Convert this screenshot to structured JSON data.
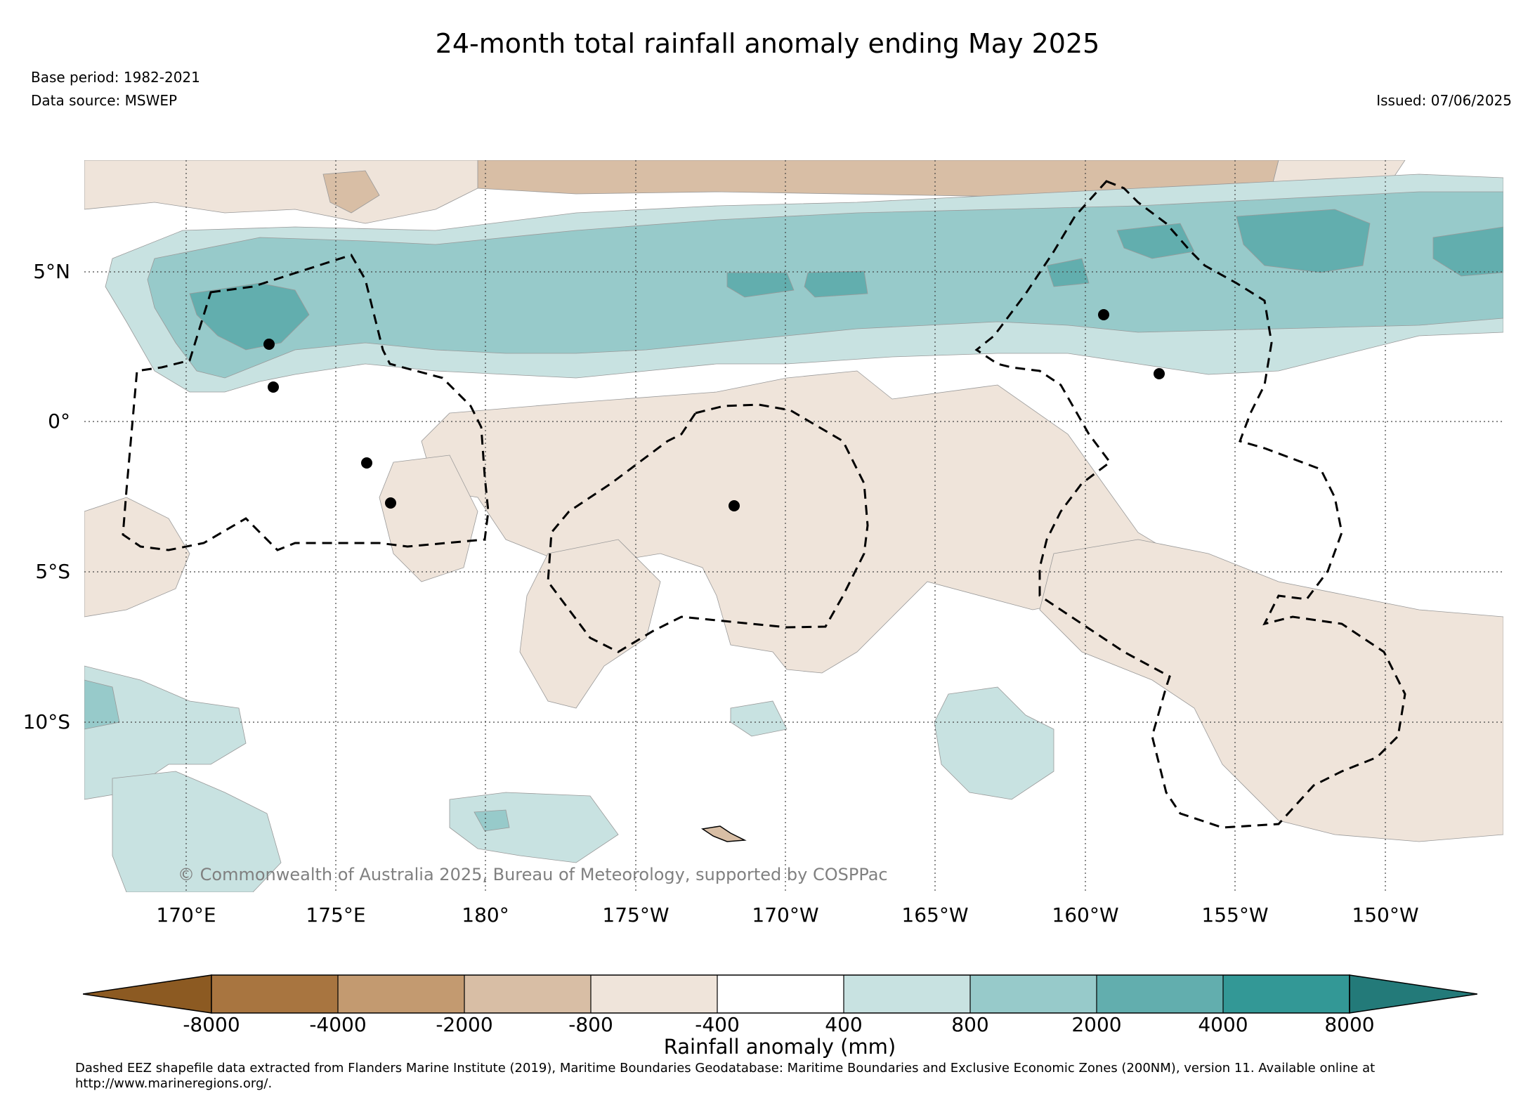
{
  "header": {
    "title": "24-month total rainfall anomaly ending May 2025",
    "base_period": "Base period: 1982-2021",
    "data_source": "Data source: MSWEP",
    "issued": "Issued: 07/06/2025"
  },
  "map": {
    "lat_labels": [
      "5°N",
      "0°",
      "5°S",
      "10°S"
    ],
    "lon_labels": [
      "170°E",
      "175°E",
      "180°",
      "175°W",
      "170°W",
      "165°W",
      "160°W",
      "155°W",
      "150°W"
    ],
    "credit": "© Commonwealth of Australia 2025, Bureau of Meteorology, supported by COSPPac",
    "colors": {
      "dry_extreme": "#8c5a22",
      "dry_4000": "#a87540",
      "dry_2000": "#c39a70",
      "dry_800": "#d8bea5",
      "dry_400": "#efe4da",
      "neutral": "#ffffff",
      "wet_400": "#c8e2e1",
      "wet_800": "#97caca",
      "wet_2000": "#62aeae",
      "wet_4000": "#339896",
      "wet_extreme": "#237a79"
    }
  },
  "colorbar": {
    "ticks": [
      "-8000",
      "-4000",
      "-2000",
      "-800",
      "-400",
      "400",
      "800",
      "2000",
      "4000",
      "8000"
    ],
    "label": "Rainfall anomaly (mm)"
  },
  "footnote": "Dashed EEZ shapefile data extracted from Flanders Marine Institute (2019), Maritime Boundaries Geodatabase: Maritime Boundaries and Exclusive Economic Zones (200NM), version 11. Available online at http://www.marineregions.org/."
}
